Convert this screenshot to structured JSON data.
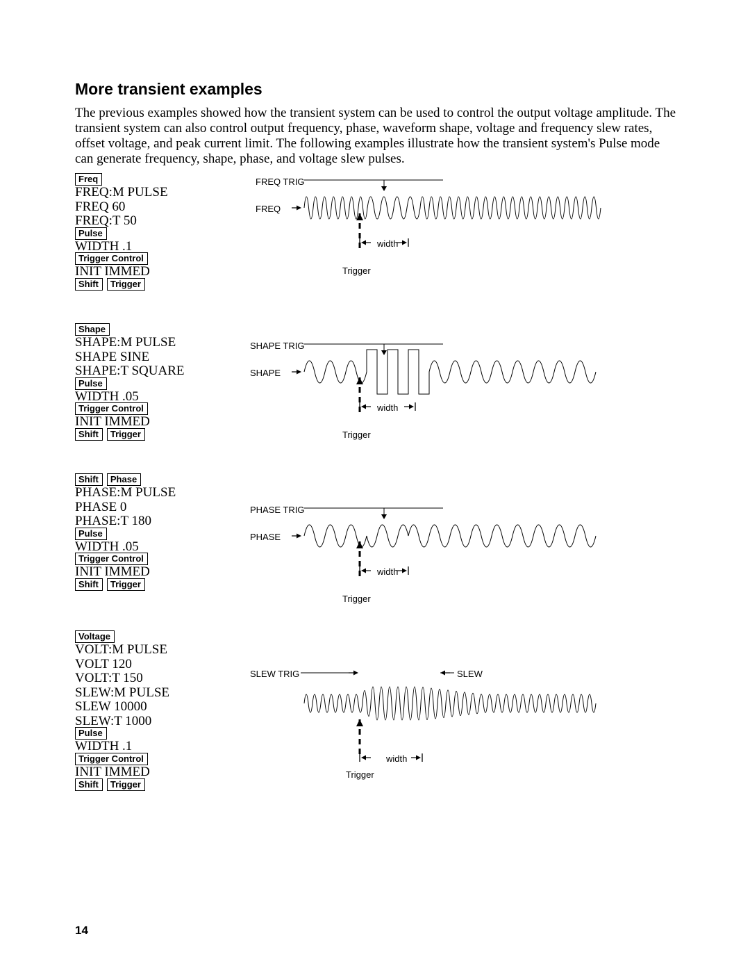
{
  "title": "More transient examples",
  "intro": "The previous examples showed how the transient system can be used to control the output voltage amplitude. The transient system can also control output frequency, phase, waveform shape, voltage and frequency slew rates, offset voltage, and peak current limit. The following examples illustrate how the transient system's Pulse mode can generate frequency, shape, phase, and voltage slew pulses.",
  "page_number": "14",
  "keys": {
    "freq": "Freq",
    "pulse": "Pulse",
    "trigctl": "Trigger Control",
    "shift": "Shift",
    "trigger": "Trigger",
    "shape": "Shape",
    "phase": "Phase",
    "voltage": "Voltage"
  },
  "labels": {
    "freq_trig": "FREQ TRIG",
    "freq": "FREQ",
    "shape_trig": "SHAPE TRIG",
    "shape": "SHAPE",
    "phase_trig": "PHASE TRIG",
    "phase": "PHASE",
    "slew_trig": "SLEW TRIG",
    "slew": "SLEW",
    "width": "width",
    "trigger": "Trigger"
  },
  "ex1": {
    "l1": "FREQ:M PULSE",
    "l2": "FREQ 60",
    "l3": "FREQ:T 50",
    "l4": "WIDTH .1",
    "l5": "INIT IMMED"
  },
  "ex2": {
    "l1": "SHAPE:M PULSE",
    "l2": "SHAPE SINE",
    "l3": "SHAPE:T SQUARE",
    "l4": "WIDTH .05",
    "l5": "INIT IMMED"
  },
  "ex3": {
    "l1": "PHASE:M PULSE",
    "l2": "PHASE 0",
    "l3": "PHASE:T 180",
    "l4": "WIDTH .05",
    "l5": "INIT IMMED"
  },
  "ex4": {
    "l1": "VOLT:M PULSE",
    "l2": "VOLT 120",
    "l3": "VOLT:T 150",
    "l4": "SLEW:M PULSE",
    "l5": "SLEW 10000",
    "l6": "SLEW:T 1000",
    "l7": "WIDTH .1",
    "l8": "INIT IMMED"
  },
  "style": {
    "text_color": "#000000",
    "bg": "#ffffff",
    "stroke": "#000000",
    "stroke_width": 1.2,
    "diag_width": 530,
    "diag_height": 150
  }
}
